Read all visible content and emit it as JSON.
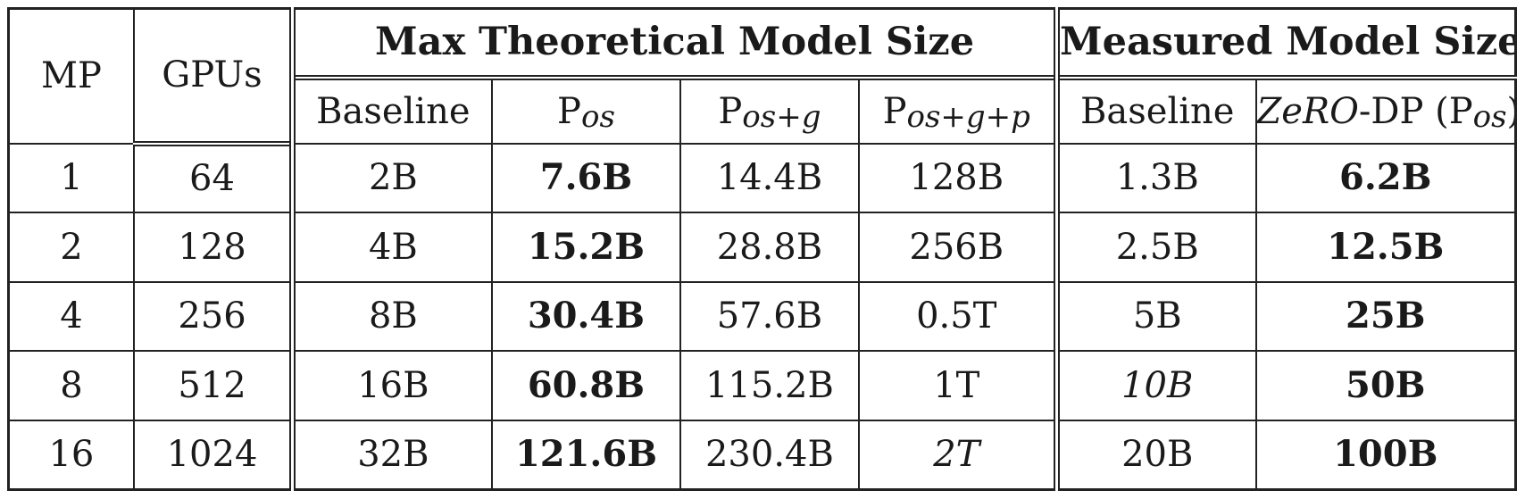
{
  "headers": {
    "mp": "MP",
    "gpus": "GPUs",
    "group_theoretical": "Max Theoretical Model Size",
    "group_measured": "Measured Model Size",
    "baseline": "Baseline",
    "p_base": "P",
    "p_os_sub": "os",
    "p_osg_sub": "os+g",
    "p_osgp_sub": "os+g+p",
    "measured_baseline": "Baseline",
    "zero_italic": "ZeRO",
    "zero_rest": "-DP (P",
    "zero_sub": "os",
    "zero_close": ")"
  },
  "rows": [
    {
      "mp": "1",
      "gpus": "64",
      "baseline": "2B",
      "pos": "7.6B",
      "posg": "14.4B",
      "posgp": "128B",
      "m_baseline": "1.3B",
      "zero": "6.2B"
    },
    {
      "mp": "2",
      "gpus": "128",
      "baseline": "4B",
      "pos": "15.2B",
      "posg": "28.8B",
      "posgp": "256B",
      "m_baseline": "2.5B",
      "zero": "12.5B"
    },
    {
      "mp": "4",
      "gpus": "256",
      "baseline": "8B",
      "pos": "30.4B",
      "posg": "57.6B",
      "posgp": "0.5T",
      "m_baseline": "5B",
      "zero": "25B"
    },
    {
      "mp": "8",
      "gpus": "512",
      "baseline": "16B",
      "pos": "60.8B",
      "posg": "115.2B",
      "posgp": "1T",
      "m_baseline": "10B",
      "zero": "50B"
    },
    {
      "mp": "16",
      "gpus": "1024",
      "baseline": "32B",
      "pos": "121.6B",
      "posg": "230.4B",
      "posgp": "2T",
      "m_baseline": "20B",
      "zero": "100B"
    }
  ]
}
